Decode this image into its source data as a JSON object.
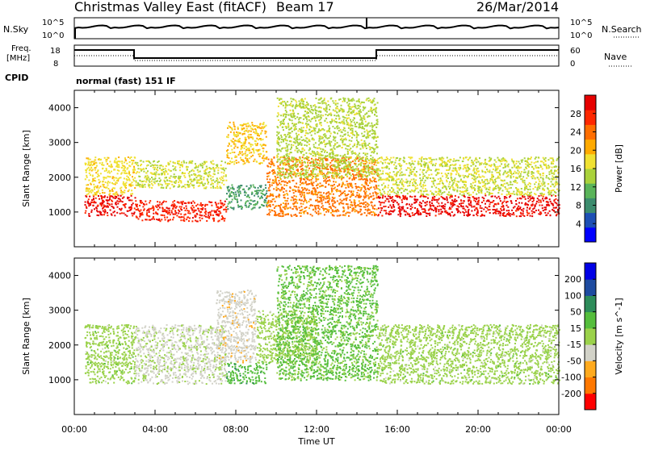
{
  "header": {
    "station": "Christmas Valley East (fitACF)",
    "beam": "Beam 17",
    "date": "26/Mar/2014"
  },
  "noise_panel": {
    "left_label": "N.Sky",
    "left_ticks": [
      "10^5",
      "10^0"
    ],
    "right_label": "N.Search",
    "right_ticks": [
      "10^5",
      "10^0"
    ]
  },
  "freq_panel": {
    "left_label_1": "Freq.",
    "left_label_2": "[MHz]",
    "left_ticks": [
      "18",
      "8"
    ],
    "right_label": "Nave",
    "right_ticks": [
      "60",
      "0"
    ]
  },
  "cpid": {
    "label": "CPID",
    "text": "normal (fast) 151 IF"
  },
  "colors": {
    "power_scale": [
      "#0000ff",
      "#1d4fb4",
      "#3c8c6e",
      "#5ab45a",
      "#aad23c",
      "#f0e132",
      "#ffaa00",
      "#ff6e00",
      "#ff2800",
      "#e60000"
    ],
    "velocity_scale": [
      "#ff0000",
      "#ff7800",
      "#ffaa1e",
      "#d2d2c8",
      "#9bd24b",
      "#55be3c",
      "#2d8c5a",
      "#1e4ba0",
      "#0000e6"
    ]
  },
  "chart_data": [
    {
      "type": "heatmap",
      "title": "Power",
      "ylabel": "Slant Range [km]",
      "ylim": [
        0,
        4500
      ],
      "yticks": [
        "1000",
        "2000",
        "3000",
        "4000"
      ],
      "xlim": [
        "00:00",
        "24:00"
      ],
      "colorbar_label": "Power [dB]",
      "colorbar_ticks": [
        "4",
        "8",
        "12",
        "16",
        "20",
        "24",
        "28"
      ],
      "colorbar_range": [
        0,
        30
      ],
      "bands": [
        {
          "t_start": 0.5,
          "t_end": 3.0,
          "r_low": 900,
          "r_high": 1500,
          "value": 28
        },
        {
          "t_start": 0.5,
          "t_end": 3.0,
          "r_low": 1500,
          "r_high": 2600,
          "value": 17
        },
        {
          "t_start": 3.0,
          "t_end": 7.5,
          "r_low": 750,
          "r_high": 1350,
          "value": 26
        },
        {
          "t_start": 3.0,
          "t_end": 7.5,
          "r_low": 1700,
          "r_high": 2500,
          "value": 15
        },
        {
          "t_start": 7.5,
          "t_end": 9.5,
          "r_low": 2400,
          "r_high": 3600,
          "value": 18
        },
        {
          "t_start": 7.5,
          "t_end": 9.5,
          "r_low": 1100,
          "r_high": 1800,
          "value": 9
        },
        {
          "t_start": 9.5,
          "t_end": 15.0,
          "r_low": 900,
          "r_high": 2600,
          "value": 22
        },
        {
          "t_start": 10.0,
          "t_end": 15.0,
          "r_low": 2000,
          "r_high": 4300,
          "value": 14
        },
        {
          "t_start": 15.0,
          "t_end": 24.0,
          "r_low": 900,
          "r_high": 1500,
          "value": 28
        },
        {
          "t_start": 15.0,
          "t_end": 24.0,
          "r_low": 1500,
          "r_high": 2600,
          "value": 15
        }
      ]
    },
    {
      "type": "heatmap",
      "title": "Velocity",
      "ylabel": "Slant Range [km]",
      "ylim": [
        0,
        4500
      ],
      "yticks": [
        "1000",
        "2000",
        "3000",
        "4000"
      ],
      "xlabel": "Time UT",
      "xticks": [
        "00:00",
        "04:00",
        "08:00",
        "12:00",
        "16:00",
        "20:00",
        "00:00"
      ],
      "xlim": [
        "00:00",
        "24:00"
      ],
      "colorbar_label": "Velocity [m s^-1]",
      "colorbar_ticks": [
        "-200",
        "-100",
        "-50",
        "-15",
        "15",
        "50",
        "100",
        "200"
      ],
      "colorbar_range": [
        -250,
        250
      ],
      "bands": [
        {
          "t_start": 0.5,
          "t_end": 3.0,
          "r_low": 900,
          "r_high": 2600,
          "value": 0
        },
        {
          "t_start": 3.0,
          "t_end": 7.5,
          "r_low": 900,
          "r_high": 2600,
          "value": -40
        },
        {
          "t_start": 7.0,
          "t_end": 9.0,
          "r_low": 1500,
          "r_high": 3600,
          "value": -60
        },
        {
          "t_start": 7.5,
          "t_end": 9.5,
          "r_low": 900,
          "r_high": 1500,
          "value": 60
        },
        {
          "t_start": 9.0,
          "t_end": 12.0,
          "r_low": 1500,
          "r_high": 3000,
          "value": 0
        },
        {
          "t_start": 10.0,
          "t_end": 15.0,
          "r_low": 1000,
          "r_high": 4300,
          "value": 40
        },
        {
          "t_start": 15.0,
          "t_end": 24.0,
          "r_low": 900,
          "r_high": 2600,
          "value": 0
        }
      ]
    }
  ]
}
